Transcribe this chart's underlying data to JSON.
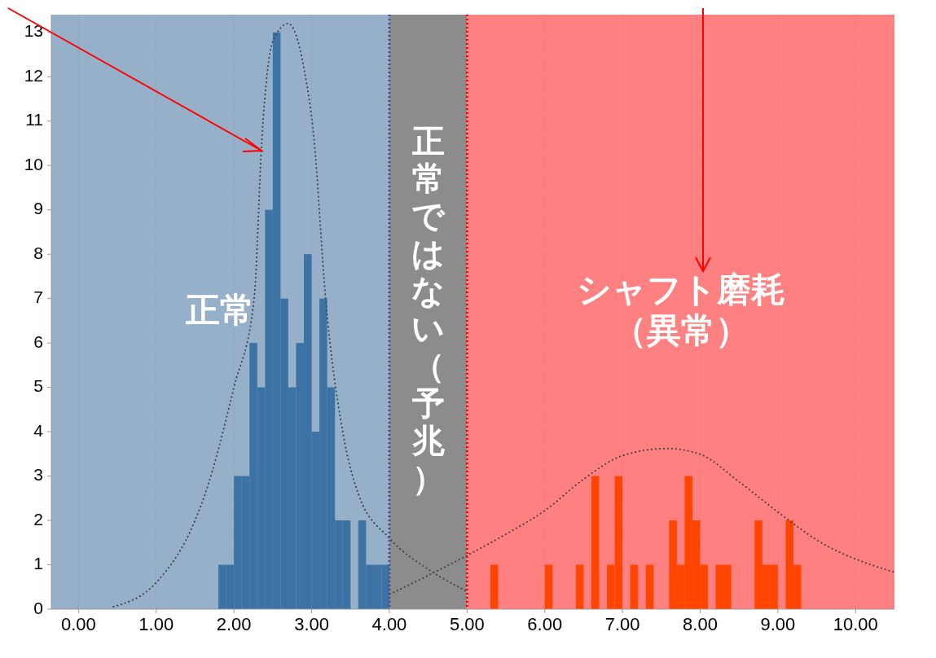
{
  "chart_data": {
    "type": "histogram",
    "bins": [
      1.8,
      1.9,
      2.0,
      2.1,
      2.2,
      2.3,
      2.4,
      2.5,
      2.6,
      2.7,
      2.8,
      2.9,
      3.0,
      3.1,
      3.2,
      3.3,
      3.4,
      3.5,
      3.6,
      3.7,
      3.8,
      3.9,
      4.0,
      4.1,
      4.2,
      4.3,
      4.4,
      4.5,
      4.6,
      4.7,
      4.8,
      4.9,
      5.0,
      5.1,
      5.2,
      5.3,
      5.4,
      5.5,
      5.6,
      5.7,
      5.8,
      5.9,
      6.0,
      6.1,
      6.2,
      6.3,
      6.4,
      6.5,
      6.6,
      6.7,
      6.8,
      6.9,
      7.0,
      7.1,
      7.2,
      7.3,
      7.4,
      7.5,
      7.6,
      7.7,
      7.8,
      7.9,
      8.0,
      8.1,
      8.2,
      8.3,
      8.4,
      8.5,
      8.6,
      8.7,
      8.8,
      8.9,
      9.0,
      9.1,
      9.2,
      9.3
    ],
    "series": [
      {
        "color": "#3d72a4",
        "values": [
          1,
          1,
          3,
          3,
          6,
          5,
          9,
          13,
          7,
          5,
          6,
          8,
          4,
          7,
          5,
          2,
          2,
          0,
          2,
          1,
          1,
          1,
          0,
          0,
          0,
          0,
          0,
          0,
          0,
          0,
          0,
          0,
          0,
          0,
          0,
          0,
          0,
          0,
          0,
          0,
          0,
          0,
          0,
          0,
          0,
          0,
          0,
          0,
          0,
          0,
          0,
          0,
          0,
          0,
          0,
          0,
          0,
          0,
          0,
          0,
          0,
          0,
          0,
          0,
          0,
          0,
          0,
          0,
          0,
          0,
          0,
          0,
          0,
          0,
          0
        ]
      },
      {
        "color": "#ff4500",
        "values": [
          0,
          0,
          0,
          0,
          0,
          0,
          0,
          0,
          0,
          0,
          0,
          0,
          0,
          0,
          0,
          0,
          0,
          0,
          0,
          0,
          0,
          0,
          0,
          0,
          0,
          0,
          0,
          0,
          0,
          0,
          0,
          0,
          0,
          0,
          0,
          1,
          0,
          0,
          0,
          0,
          0,
          0,
          1,
          0,
          0,
          0,
          1,
          0,
          3,
          0,
          1,
          3,
          0,
          1,
          0,
          1,
          0,
          0,
          2,
          1,
          3,
          2,
          1,
          0,
          1,
          1,
          0,
          0,
          0,
          2,
          1,
          1,
          0,
          2,
          1
        ]
      },
      {
        "type": "line",
        "color": "#404040",
        "line_style": "dotted",
        "x": [
          0.44,
          1.0,
          1.5,
          1.63,
          2.0,
          2.26,
          2.36,
          2.5,
          2.7,
          2.9,
          3.03,
          3.18,
          3.4,
          3.6,
          4.0,
          4.5,
          5.0
        ],
        "values": [
          0.05,
          0.6,
          2.0,
          2.6,
          5.0,
          7.0,
          10.6,
          12.8,
          13.2,
          12.2,
          10.6,
          7.0,
          4.0,
          2.6,
          1.6,
          0.9,
          0.4
        ]
      },
      {
        "type": "line",
        "color": "#404040",
        "line_style": "dotted",
        "x": [
          4.0,
          5.0,
          5.5,
          6.0,
          6.5,
          7.0,
          7.58,
          8.0,
          8.5,
          9.0,
          9.5,
          10.5
        ],
        "values": [
          0.33,
          1.21,
          1.69,
          2.22,
          2.93,
          3.46,
          3.62,
          3.49,
          2.87,
          2.19,
          1.56,
          0.83
        ]
      }
    ],
    "xlim": [
      -0.35,
      10.5
    ],
    "xticks": [
      {
        "value": 0,
        "label": "0.00"
      },
      {
        "value": 1,
        "label": "1.00"
      },
      {
        "value": 2,
        "label": "2.00"
      },
      {
        "value": 3,
        "label": "3.00"
      },
      {
        "value": 4,
        "label": "4.00"
      },
      {
        "value": 5,
        "label": "5.00"
      },
      {
        "value": 6,
        "label": "6.00"
      },
      {
        "value": 7,
        "label": "7.00"
      },
      {
        "value": 8,
        "label": "8.00"
      },
      {
        "value": 9,
        "label": "9.00"
      },
      {
        "value": 10,
        "label": "10.00"
      }
    ],
    "ylim": [
      0,
      13.4
    ],
    "yticks": [
      0,
      1,
      2,
      3,
      4,
      5,
      6,
      7,
      8,
      9,
      10,
      11,
      12,
      13
    ],
    "bands": [
      {
        "axis": "x",
        "from": -0.35,
        "to": 4.0,
        "label": "正常",
        "color": "#97b0c9"
      },
      {
        "axis": "x",
        "from": 4.0,
        "to": 5.0,
        "label": "正常ではない（予兆）",
        "color": "#8c8c8c"
      },
      {
        "axis": "x",
        "from": 5.0,
        "to": 10.5,
        "label": "シャフト磨耗（異常）",
        "color": "#ff8080"
      }
    ],
    "ref_lines": [
      {
        "axis": "x",
        "value": 4.0,
        "color": "#3a4fa0",
        "line_style": "dotted"
      },
      {
        "axis": "x",
        "value": 5.0,
        "color": "#ff0000",
        "line_style": "dotted"
      }
    ],
    "grid": "x",
    "marker": "none"
  }
}
